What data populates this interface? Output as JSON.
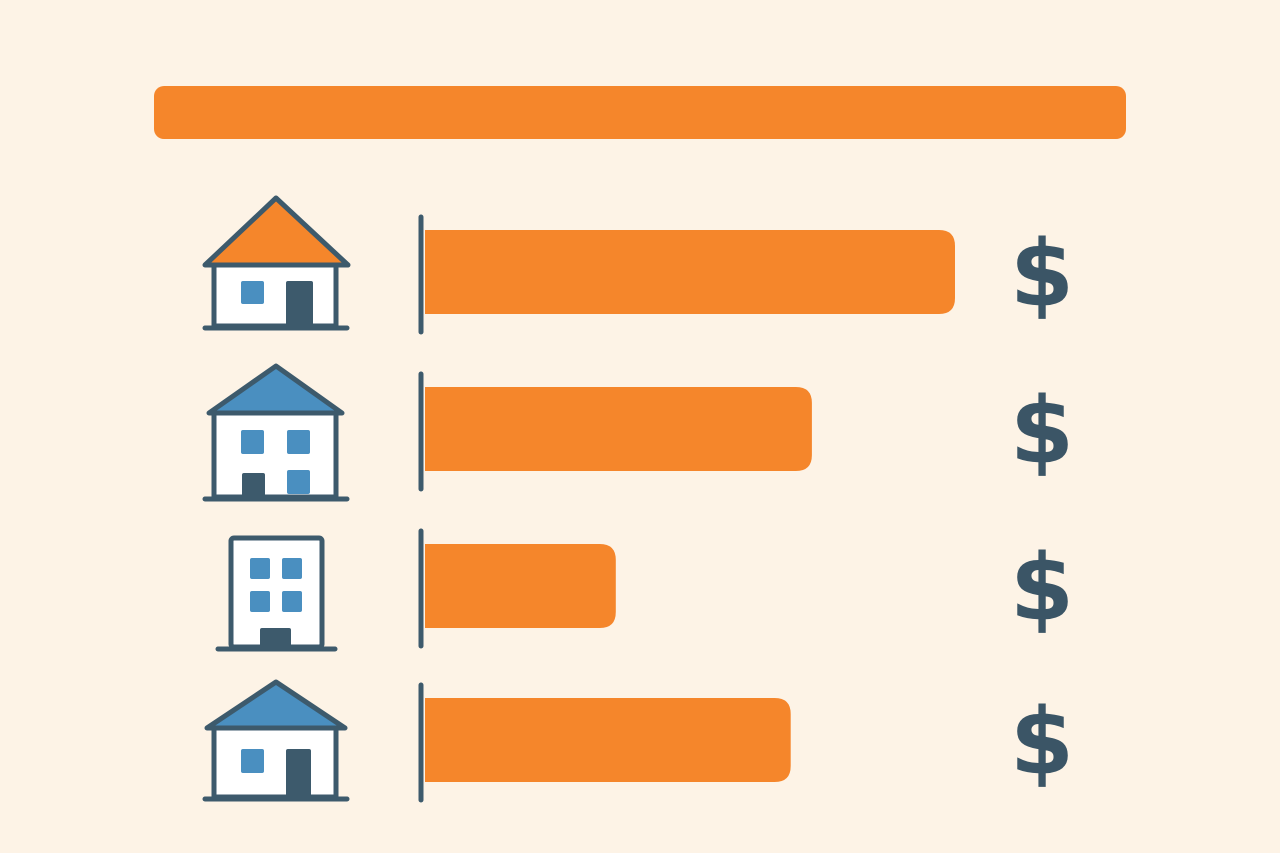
{
  "chart_data": {
    "type": "bar",
    "orientation": "horizontal",
    "categories": [
      null,
      null,
      null,
      null
    ],
    "values": [
      100,
      73,
      36,
      69
    ],
    "color": "#f5862b",
    "annotations": [
      "$",
      "$",
      "$",
      "$"
    ]
  }
}
